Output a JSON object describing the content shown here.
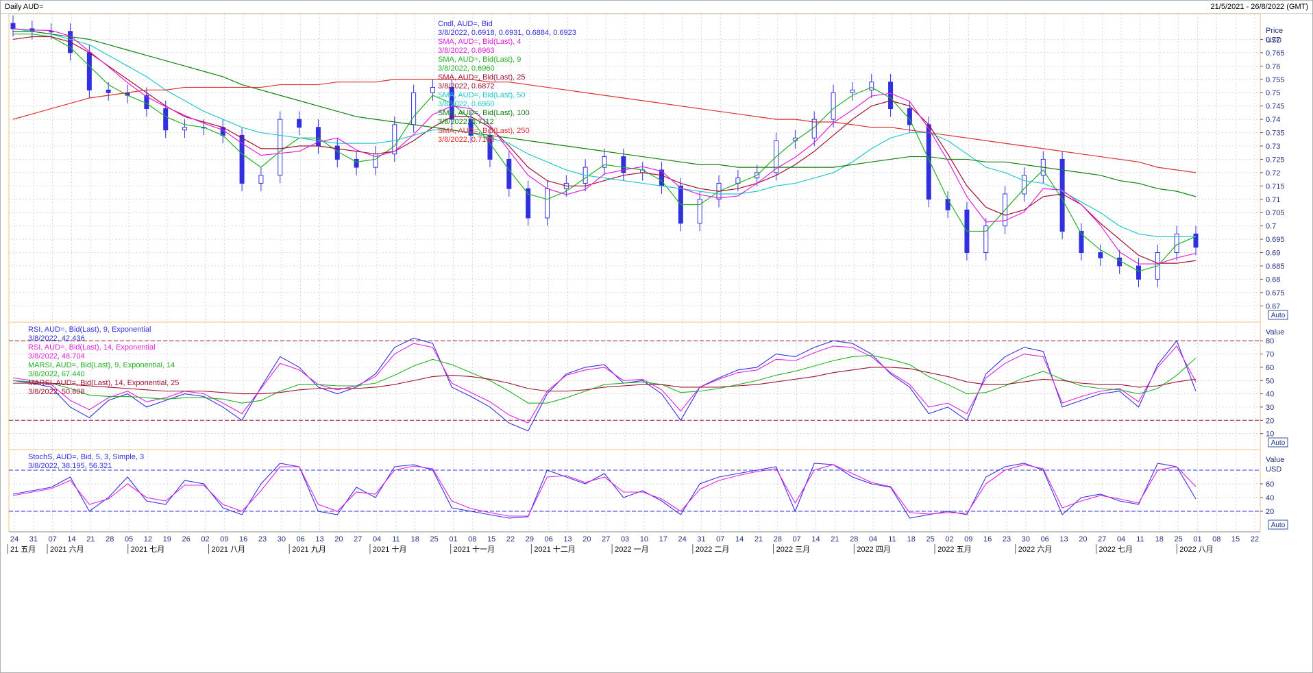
{
  "window": {
    "title": "Daily AUD=",
    "range": "21/5/2021 - 26/8/2022 (GMT)"
  },
  "colors": {
    "candle": "#3030e0",
    "sma4": "#e020e0",
    "sma9": "#20b020",
    "sma25": "#a01030",
    "sma50": "#20c8d0",
    "sma100": "#108010",
    "sma250": "#e03030",
    "rsi9": "#3030e0",
    "rsi14": "#e020e0",
    "marsi9": "#20b020",
    "marsi14": "#a01030",
    "stoch_k": "#3030e0",
    "stoch_d": "#e020e0",
    "grid": "#c8c8c8",
    "axis_label": "#203080"
  },
  "price_panel": {
    "axis_title": "Price",
    "axis_unit": "USD",
    "auto_label": "Auto",
    "legend": [
      {
        "label": "Cndl, AUD=, Bid",
        "value": "3/8/2022, 0.6918, 0.6931, 0.6884, 0.6923",
        "color_key": "candle"
      },
      {
        "label": "SMA, AUD=, Bid(Last), 4",
        "value": "3/8/2022, 0.6963",
        "color_key": "sma4"
      },
      {
        "label": "SMA, AUD=, Bid(Last), 9",
        "value": "3/8/2022, 0.6960",
        "color_key": "sma9"
      },
      {
        "label": "SMA, AUD=, Bid(Last), 25",
        "value": "3/8/2022, 0.6872",
        "color_key": "sma25"
      },
      {
        "label": "SMA, AUD=, Bid(Last), 50",
        "value": "3/8/2022, 0.6960",
        "color_key": "sma50"
      },
      {
        "label": "SMA, AUD=, Bid(Last), 100",
        "value": "3/8/2022, 0.7112",
        "color_key": "sma100"
      },
      {
        "label": "SMA, AUD=, Bid(Last), 250",
        "value": "3/8/2022, 0.7198",
        "color_key": "sma250"
      }
    ],
    "ticks": [
      "0.67",
      "0.675",
      "0.68",
      "0.685",
      "0.69",
      "0.695",
      "0.7",
      "0.705",
      "0.71",
      "0.715",
      "0.72",
      "0.725",
      "0.73",
      "0.735",
      "0.74",
      "0.745",
      "0.75",
      "0.755",
      "0.76",
      "0.765",
      "0.77"
    ]
  },
  "rsi_panel": {
    "axis_title": "Value",
    "auto_label": "Auto",
    "legend": [
      {
        "label": "RSI, AUD=, Bid(Last), 9, Exponential",
        "value": "3/8/2022, 42.436",
        "color_key": "rsi9"
      },
      {
        "label": "RSI, AUD=, Bid(Last), 14, Exponential",
        "value": "3/8/2022, 48.704",
        "color_key": "rsi14"
      },
      {
        "label": "MARSI, AUD=, Bid(Last), 9, Exponential, 14",
        "value": "3/8/2022, 67.440",
        "color_key": "marsi9"
      },
      {
        "label": "MARSI, AUD=, Bid(Last), 14, Exponential, 25",
        "value": "3/8/2022, 50.608",
        "color_key": "marsi14"
      }
    ],
    "ticks": [
      "10",
      "20",
      "30",
      "40",
      "50",
      "60",
      "70",
      "80"
    ]
  },
  "stoch_panel": {
    "axis_title": "Value",
    "axis_unit": "USD",
    "auto_label": "Auto",
    "legend": [
      {
        "label": "StochS, AUD=, Bid, 5, 3, Simple, 3",
        "value": "3/8/2022, 38.195, 56.321",
        "color_key": "stoch_k"
      }
    ],
    "ticks": [
      "20",
      "40",
      "60"
    ]
  },
  "x_axis": {
    "day_ticks": [
      "24",
      "31",
      "07",
      "14",
      "21",
      "28",
      "05",
      "12",
      "19",
      "26",
      "02",
      "09",
      "16",
      "23",
      "30",
      "06",
      "13",
      "20",
      "27",
      "04",
      "11",
      "18",
      "25",
      "01",
      "08",
      "15",
      "22",
      "29",
      "06",
      "13",
      "20",
      "27",
      "03",
      "10",
      "17",
      "24",
      "31",
      "07",
      "14",
      "21",
      "28",
      "07",
      "14",
      "21",
      "28",
      "04",
      "11",
      "18",
      "25",
      "02",
      "09",
      "16",
      "23",
      "30",
      "06",
      "13",
      "20",
      "27",
      "04",
      "11",
      "18",
      "25",
      "01",
      "08",
      "15",
      "22"
    ],
    "month_labels": [
      "21 五月",
      "2021 六月",
      "2021 七月",
      "2021 八月",
      "2021 九月",
      "2021 十月",
      "2021 十一月",
      "2021 十二月",
      "2022 一月",
      "2022 二月",
      "2022 三月",
      "2022 四月",
      "2022 五月",
      "2022 六月",
      "2022 七月",
      "2022 八月"
    ]
  },
  "chart_data": {
    "type": "line",
    "title": "Daily AUD=",
    "subtitle": "21/5/2021 - 26/8/2022 (GMT)",
    "ylim": [
      0.667,
      0.775
    ],
    "weeks": [
      "2021-05-24",
      "2021-05-31",
      "2021-06-07",
      "2021-06-14",
      "2021-06-21",
      "2021-06-28",
      "2021-07-05",
      "2021-07-12",
      "2021-07-19",
      "2021-07-26",
      "2021-08-02",
      "2021-08-09",
      "2021-08-16",
      "2021-08-23",
      "2021-08-30",
      "2021-09-06",
      "2021-09-13",
      "2021-09-20",
      "2021-09-27",
      "2021-10-04",
      "2021-10-11",
      "2021-10-18",
      "2021-10-25",
      "2021-11-01",
      "2021-11-08",
      "2021-11-15",
      "2021-11-22",
      "2021-11-29",
      "2021-12-06",
      "2021-12-13",
      "2021-12-20",
      "2021-12-27",
      "2022-01-03",
      "2022-01-10",
      "2022-01-17",
      "2022-01-24",
      "2022-01-31",
      "2022-02-07",
      "2022-02-14",
      "2022-02-21",
      "2022-02-28",
      "2022-03-07",
      "2022-03-14",
      "2022-03-21",
      "2022-03-28",
      "2022-04-04",
      "2022-04-11",
      "2022-04-18",
      "2022-04-25",
      "2022-05-02",
      "2022-05-09",
      "2022-05-16",
      "2022-05-23",
      "2022-05-30",
      "2022-06-06",
      "2022-06-13",
      "2022-06-20",
      "2022-06-27",
      "2022-07-04",
      "2022-07-11",
      "2022-07-18",
      "2022-07-25",
      "2022-08-01"
    ],
    "close": [
      0.774,
      0.773,
      0.773,
      0.765,
      0.751,
      0.75,
      0.749,
      0.744,
      0.736,
      0.737,
      0.737,
      0.734,
      0.716,
      0.719,
      0.74,
      0.737,
      0.73,
      0.725,
      0.722,
      0.727,
      0.738,
      0.75,
      0.752,
      0.74,
      0.734,
      0.725,
      0.714,
      0.703,
      0.714,
      0.716,
      0.722,
      0.726,
      0.72,
      0.721,
      0.715,
      0.701,
      0.71,
      0.716,
      0.718,
      0.72,
      0.732,
      0.733,
      0.74,
      0.75,
      0.751,
      0.754,
      0.744,
      0.738,
      0.71,
      0.706,
      0.69,
      0.7,
      0.712,
      0.719,
      0.725,
      0.698,
      0.69,
      0.688,
      0.685,
      0.68,
      0.69,
      0.697,
      0.692
    ],
    "series": [
      {
        "name": "SMA, AUD=, Bid(Last), 9",
        "values": [
          0.772,
          0.772,
          0.771,
          0.767,
          0.76,
          0.753,
          0.749,
          0.746,
          0.741,
          0.738,
          0.737,
          0.734,
          0.727,
          0.722,
          0.728,
          0.733,
          0.733,
          0.728,
          0.724,
          0.725,
          0.73,
          0.741,
          0.749,
          0.746,
          0.74,
          0.731,
          0.721,
          0.712,
          0.71,
          0.713,
          0.718,
          0.723,
          0.722,
          0.721,
          0.717,
          0.708,
          0.708,
          0.713,
          0.716,
          0.719,
          0.726,
          0.732,
          0.737,
          0.744,
          0.749,
          0.752,
          0.748,
          0.74,
          0.725,
          0.71,
          0.698,
          0.698,
          0.706,
          0.714,
          0.721,
          0.71,
          0.697,
          0.691,
          0.687,
          0.683,
          0.685,
          0.693,
          0.696
        ]
      },
      {
        "name": "SMA, AUD=, Bid(Last), 25",
        "values": [
          0.77,
          0.771,
          0.771,
          0.769,
          0.765,
          0.76,
          0.755,
          0.75,
          0.745,
          0.741,
          0.739,
          0.737,
          0.733,
          0.729,
          0.729,
          0.73,
          0.73,
          0.729,
          0.728,
          0.727,
          0.728,
          0.732,
          0.737,
          0.741,
          0.741,
          0.737,
          0.73,
          0.722,
          0.717,
          0.715,
          0.715,
          0.717,
          0.719,
          0.72,
          0.719,
          0.716,
          0.714,
          0.713,
          0.714,
          0.716,
          0.719,
          0.723,
          0.728,
          0.734,
          0.74,
          0.745,
          0.747,
          0.745,
          0.738,
          0.727,
          0.715,
          0.707,
          0.704,
          0.706,
          0.711,
          0.712,
          0.708,
          0.701,
          0.695,
          0.689,
          0.686,
          0.686,
          0.687
        ]
      },
      {
        "name": "SMA, AUD=, Bid(Last), 50",
        "values": [
          0.774,
          0.773,
          0.772,
          0.77,
          0.768,
          0.764,
          0.76,
          0.756,
          0.751,
          0.747,
          0.743,
          0.74,
          0.737,
          0.735,
          0.734,
          0.733,
          0.732,
          0.731,
          0.731,
          0.731,
          0.732,
          0.734,
          0.736,
          0.736,
          0.735,
          0.733,
          0.731,
          0.727,
          0.724,
          0.721,
          0.719,
          0.718,
          0.717,
          0.716,
          0.715,
          0.714,
          0.713,
          0.712,
          0.712,
          0.713,
          0.715,
          0.716,
          0.718,
          0.72,
          0.724,
          0.729,
          0.733,
          0.735,
          0.735,
          0.732,
          0.727,
          0.722,
          0.72,
          0.717,
          0.716,
          0.713,
          0.709,
          0.705,
          0.7,
          0.697,
          0.696,
          0.696,
          0.696
        ]
      },
      {
        "name": "SMA, AUD=, Bid(Last), 100",
        "values": [
          0.773,
          0.773,
          0.772,
          0.771,
          0.77,
          0.768,
          0.766,
          0.764,
          0.762,
          0.76,
          0.758,
          0.756,
          0.753,
          0.751,
          0.749,
          0.747,
          0.745,
          0.743,
          0.741,
          0.74,
          0.739,
          0.738,
          0.737,
          0.736,
          0.735,
          0.734,
          0.733,
          0.732,
          0.731,
          0.73,
          0.729,
          0.728,
          0.727,
          0.726,
          0.725,
          0.724,
          0.723,
          0.723,
          0.722,
          0.722,
          0.722,
          0.722,
          0.722,
          0.722,
          0.723,
          0.724,
          0.725,
          0.726,
          0.726,
          0.725,
          0.725,
          0.724,
          0.724,
          0.723,
          0.722,
          0.721,
          0.72,
          0.719,
          0.717,
          0.716,
          0.714,
          0.713,
          0.711
        ]
      },
      {
        "name": "SMA, AUD=, Bid(Last), 250",
        "values": [
          0.74,
          0.742,
          0.744,
          0.746,
          0.748,
          0.749,
          0.75,
          0.751,
          0.751,
          0.752,
          0.752,
          0.752,
          0.752,
          0.752,
          0.753,
          0.753,
          0.753,
          0.754,
          0.754,
          0.754,
          0.755,
          0.755,
          0.755,
          0.755,
          0.755,
          0.754,
          0.754,
          0.753,
          0.752,
          0.751,
          0.75,
          0.749,
          0.748,
          0.747,
          0.746,
          0.745,
          0.744,
          0.743,
          0.742,
          0.741,
          0.74,
          0.74,
          0.739,
          0.739,
          0.738,
          0.737,
          0.737,
          0.736,
          0.735,
          0.734,
          0.733,
          0.732,
          0.731,
          0.73,
          0.729,
          0.728,
          0.727,
          0.726,
          0.725,
          0.724,
          0.722,
          0.721,
          0.72
        ]
      }
    ],
    "rsi": {
      "ylim": [
        0,
        92
      ],
      "levels": [
        20,
        80
      ],
      "series": [
        {
          "name": "RSI, AUD=, Bid(Last), 9, Exponential",
          "values": [
            50,
            48,
            45,
            30,
            22,
            35,
            40,
            30,
            35,
            40,
            38,
            30,
            20,
            45,
            68,
            60,
            45,
            40,
            45,
            55,
            75,
            82,
            78,
            45,
            38,
            30,
            18,
            12,
            40,
            55,
            60,
            62,
            48,
            50,
            40,
            20,
            45,
            52,
            58,
            60,
            70,
            68,
            75,
            80,
            78,
            70,
            55,
            45,
            25,
            30,
            20,
            55,
            68,
            75,
            72,
            30,
            35,
            40,
            42,
            30,
            62,
            80,
            42
          ]
        },
        {
          "name": "RSI, AUD=, Bid(Last), 14, Exponential",
          "values": [
            52,
            50,
            47,
            35,
            28,
            37,
            42,
            34,
            37,
            42,
            40,
            33,
            25,
            44,
            63,
            58,
            47,
            43,
            46,
            53,
            70,
            78,
            75,
            48,
            41,
            34,
            24,
            18,
            42,
            54,
            58,
            60,
            50,
            51,
            43,
            27,
            45,
            51,
            56,
            58,
            66,
            65,
            71,
            76,
            75,
            68,
            56,
            47,
            30,
            33,
            25,
            52,
            63,
            70,
            68,
            33,
            38,
            42,
            44,
            34,
            60,
            76,
            49
          ]
        },
        {
          "name": "MARSI, AUD=, Bid(Last), 9, Exponential, 14",
          "values": [
            50,
            49,
            48,
            44,
            39,
            38,
            38,
            37,
            36,
            37,
            37,
            36,
            33,
            35,
            42,
            47,
            47,
            46,
            46,
            48,
            54,
            61,
            66,
            62,
            56,
            50,
            42,
            33,
            33,
            37,
            42,
            47,
            48,
            49,
            47,
            41,
            42,
            44,
            47,
            50,
            54,
            57,
            61,
            65,
            68,
            69,
            66,
            62,
            53,
            47,
            40,
            41,
            46,
            52,
            57,
            51,
            46,
            44,
            43,
            40,
            44,
            54,
            67
          ]
        },
        {
          "name": "MARSI, AUD=, Bid(Last), 14, Exponential, 25",
          "values": [
            48,
            48,
            48,
            47,
            46,
            45,
            44,
            43,
            42,
            42,
            42,
            41,
            40,
            40,
            41,
            43,
            44,
            44,
            44,
            45,
            47,
            50,
            53,
            54,
            53,
            51,
            48,
            44,
            42,
            42,
            43,
            45,
            46,
            47,
            47,
            45,
            45,
            45,
            46,
            47,
            49,
            51,
            53,
            56,
            58,
            60,
            60,
            59,
            56,
            53,
            49,
            47,
            47,
            49,
            51,
            50,
            48,
            47,
            47,
            45,
            46,
            49,
            51
          ]
        }
      ]
    },
    "stoch": {
      "ylim": [
        0,
        100
      ],
      "levels": [
        20,
        80
      ],
      "series": [
        {
          "name": "StochS %K",
          "values": [
            45,
            50,
            55,
            70,
            20,
            40,
            70,
            35,
            30,
            65,
            60,
            25,
            15,
            60,
            90,
            85,
            20,
            15,
            55,
            40,
            85,
            88,
            80,
            25,
            20,
            15,
            10,
            12,
            80,
            70,
            60,
            75,
            40,
            50,
            35,
            15,
            60,
            70,
            75,
            80,
            85,
            20,
            90,
            88,
            70,
            60,
            55,
            10,
            15,
            20,
            15,
            70,
            85,
            90,
            80,
            15,
            40,
            45,
            35,
            30,
            90,
            85,
            38
          ]
        },
        {
          "name": "StochS %D",
          "values": [
            43,
            48,
            53,
            65,
            30,
            38,
            60,
            40,
            35,
            58,
            58,
            30,
            20,
            50,
            85,
            85,
            30,
            20,
            48,
            45,
            80,
            86,
            82,
            35,
            24,
            18,
            13,
            13,
            70,
            72,
            62,
            70,
            48,
            48,
            38,
            20,
            52,
            65,
            72,
            78,
            82,
            32,
            80,
            88,
            75,
            62,
            56,
            18,
            16,
            18,
            17,
            60,
            80,
            88,
            82,
            25,
            35,
            43,
            38,
            32,
            80,
            85,
            56
          ]
        }
      ]
    }
  }
}
